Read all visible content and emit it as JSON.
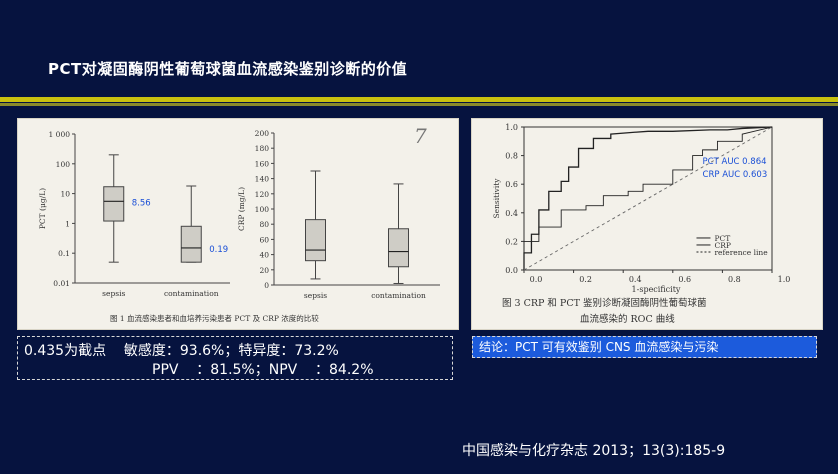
{
  "slide": {
    "title": "PCT对凝固酶阴性葡萄球菌血流感染鉴别诊断的价值",
    "citation": "中国感染与化疗杂志  2013；13(3):185-9",
    "colors": {
      "background": "#06133f",
      "rule": "#c9c10f",
      "conclusion_bg": "#1c5bdc",
      "annotation_blue": "#1a4fd6"
    }
  },
  "stats": {
    "line1": "0.435为截点    敏感度：93.6%；特异度：73.2%",
    "line2": "PPV    ：81.5%；NPV    ：84.2%"
  },
  "conclusion": "结论：PCT 可有效鉴别 CNS 血流感染与污染",
  "chart_data": [
    {
      "type": "box",
      "panel": "left",
      "ylabel": "PCT (μg/L)",
      "scale": "log",
      "ylim": [
        0.01,
        1000
      ],
      "yticks": [
        "0.01",
        "0.1",
        "1",
        "10",
        "100",
        "1 000"
      ],
      "categories": [
        "sepsis",
        "contamination"
      ],
      "boxes": [
        {
          "category": "sepsis",
          "whisker_low": 0.05,
          "q1": 1.2,
          "median": 5.5,
          "q3": 17,
          "whisker_high": 200,
          "label": "8.56"
        },
        {
          "category": "contamination",
          "whisker_low": 0.05,
          "q1": 0.05,
          "median": 0.15,
          "q3": 0.8,
          "whisker_high": 18,
          "label": "0.19"
        }
      ],
      "caption": "图 1   血流感染患者和血培养污染患者 PCT 及 CRP 浓度的比较"
    },
    {
      "type": "box",
      "panel": "right",
      "ylabel": "CRP (mg/L)",
      "scale": "linear",
      "ylim": [
        0,
        200
      ],
      "yticks": [
        "0",
        "20",
        "40",
        "60",
        "80",
        "100",
        "120",
        "140",
        "160",
        "180",
        "200"
      ],
      "categories": [
        "sepsis",
        "contamination"
      ],
      "boxes": [
        {
          "category": "sepsis",
          "whisker_low": 8,
          "q1": 32,
          "median": 46,
          "q3": 86,
          "whisker_high": 150
        },
        {
          "category": "contamination",
          "whisker_low": 2,
          "q1": 24,
          "median": 44,
          "q3": 74,
          "whisker_high": 133
        }
      ],
      "handwritten_mark": "7"
    },
    {
      "type": "line",
      "ylabel": "Sensitivity",
      "xlabel": "1-specificity",
      "xlim": [
        0,
        1.0
      ],
      "ylim": [
        0,
        1.0
      ],
      "xticks": [
        "0.0",
        "0.2",
        "0.4",
        "0.6",
        "0.8",
        "1.0"
      ],
      "yticks": [
        "0.0",
        "0.2",
        "0.4",
        "0.6",
        "0.8",
        "1.0"
      ],
      "series": [
        {
          "name": "PCT",
          "style": "solid",
          "x": [
            0,
            0,
            0.03,
            0.03,
            0.06,
            0.06,
            0.1,
            0.1,
            0.15,
            0.15,
            0.18,
            0.18,
            0.22,
            0.22,
            0.28,
            0.28,
            0.35,
            0.35,
            0.42,
            0.5,
            0.6,
            0.75,
            0.82,
            0.88,
            1.0
          ],
          "y": [
            0,
            0.12,
            0.12,
            0.25,
            0.25,
            0.42,
            0.42,
            0.55,
            0.55,
            0.62,
            0.62,
            0.72,
            0.72,
            0.85,
            0.85,
            0.92,
            0.92,
            0.95,
            0.96,
            0.97,
            0.97,
            0.98,
            0.98,
            0.99,
            1.0
          ]
        },
        {
          "name": "CRP",
          "style": "solid-thin",
          "x": [
            0,
            0,
            0.06,
            0.06,
            0.15,
            0.15,
            0.25,
            0.25,
            0.32,
            0.32,
            0.42,
            0.42,
            0.48,
            0.48,
            0.6,
            0.6,
            0.68,
            0.68,
            0.72,
            0.72,
            0.78,
            0.78,
            0.88,
            0.88,
            1.0
          ],
          "y": [
            0,
            0.2,
            0.2,
            0.3,
            0.3,
            0.42,
            0.42,
            0.45,
            0.45,
            0.52,
            0.52,
            0.55,
            0.55,
            0.6,
            0.6,
            0.7,
            0.7,
            0.8,
            0.8,
            0.84,
            0.84,
            0.9,
            0.9,
            0.95,
            1.0
          ]
        },
        {
          "name": "reference line",
          "style": "dashed",
          "x": [
            0,
            1.0
          ],
          "y": [
            0,
            1.0
          ]
        }
      ],
      "annotations": [
        "PCT AUC 0.864",
        "CRP AUC 0.603"
      ],
      "caption_line1": "图 3   CRP 和 PCT 鉴别诊断凝固酶阴性葡萄球菌",
      "caption_line2": "血流感染的 ROC 曲线"
    }
  ]
}
